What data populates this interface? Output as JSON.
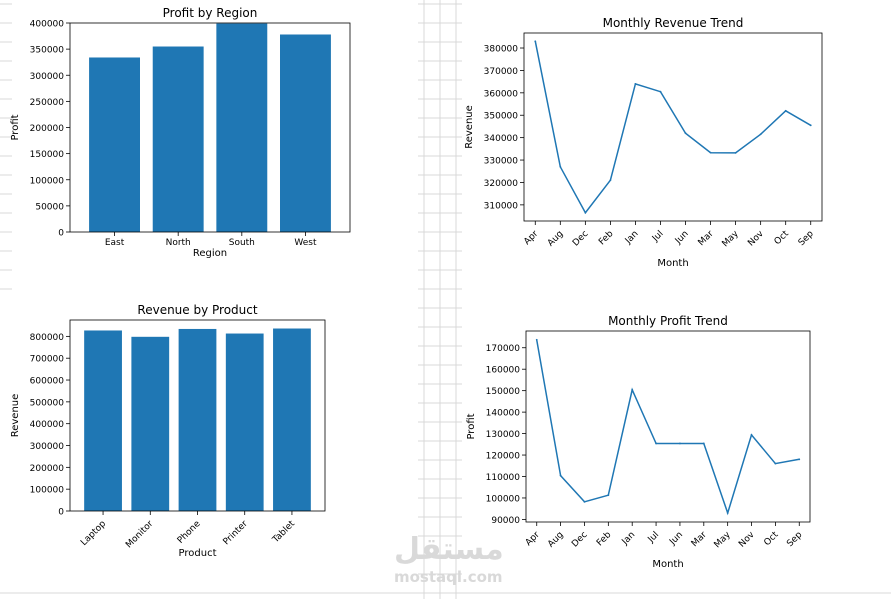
{
  "theme": {
    "bar_color": "#1f77b4",
    "line_color": "#1f77b4",
    "sheet_grid": "#d9d9d9"
  },
  "watermark": {
    "arabic": "مستقل",
    "latin": "mostaql.com"
  },
  "chart_data": [
    {
      "id": "profit-by-region",
      "type": "bar",
      "title": "Profit by Region",
      "xlabel": "Region",
      "ylabel": "Profit",
      "categories": [
        "East",
        "North",
        "South",
        "West"
      ],
      "values": [
        334000,
        355000,
        399000,
        378000
      ],
      "ylim": [
        0,
        400000
      ],
      "yticks": [
        0,
        50000,
        100000,
        150000,
        200000,
        250000,
        300000,
        350000,
        400000
      ],
      "xtick_rotation": 0,
      "grid": false
    },
    {
      "id": "monthly-revenue-trend",
      "type": "line",
      "title": "Monthly Revenue Trend",
      "xlabel": "Month",
      "ylabel": "Revenue",
      "categories": [
        "Apr",
        "Aug",
        "Dec",
        "Feb",
        "Jan",
        "Jul",
        "Jun",
        "Mar",
        "May",
        "Nov",
        "Oct",
        "Sep"
      ],
      "values": [
        383000,
        327000,
        306500,
        321000,
        364000,
        360500,
        342000,
        333300,
        333200,
        341500,
        352000,
        345500
      ],
      "ylim": [
        302800,
        386700
      ],
      "yticks": [
        310000,
        320000,
        330000,
        340000,
        350000,
        360000,
        370000,
        380000
      ],
      "xtick_rotation": -45,
      "grid": false
    },
    {
      "id": "revenue-by-product",
      "type": "bar",
      "title": "Revenue by Product",
      "xlabel": "Product",
      "ylabel": "Revenue",
      "categories": [
        "Laptop",
        "Monitor",
        "Phone",
        "Printer",
        "Tablet"
      ],
      "values": [
        827000,
        798000,
        834000,
        813000,
        836000
      ],
      "ylim": [
        0,
        875000
      ],
      "yticks": [
        0,
        100000,
        200000,
        300000,
        400000,
        500000,
        600000,
        700000,
        800000
      ],
      "xtick_rotation": -45,
      "grid": false
    },
    {
      "id": "monthly-profit-trend",
      "type": "line",
      "title": "Monthly Profit Trend",
      "xlabel": "Month",
      "ylabel": "Profit",
      "categories": [
        "Apr",
        "Aug",
        "Dec",
        "Feb",
        "Jan",
        "Jul",
        "Jun",
        "Mar",
        "May",
        "Nov",
        "Oct",
        "Sep"
      ],
      "values": [
        173700,
        110400,
        98200,
        101300,
        150400,
        125400,
        125400,
        125400,
        93000,
        129400,
        116000,
        118000
      ],
      "ylim": [
        88800,
        177800
      ],
      "yticks": [
        90000,
        100000,
        110000,
        120000,
        130000,
        140000,
        150000,
        160000,
        170000
      ],
      "xtick_rotation": -45,
      "grid": false
    }
  ]
}
